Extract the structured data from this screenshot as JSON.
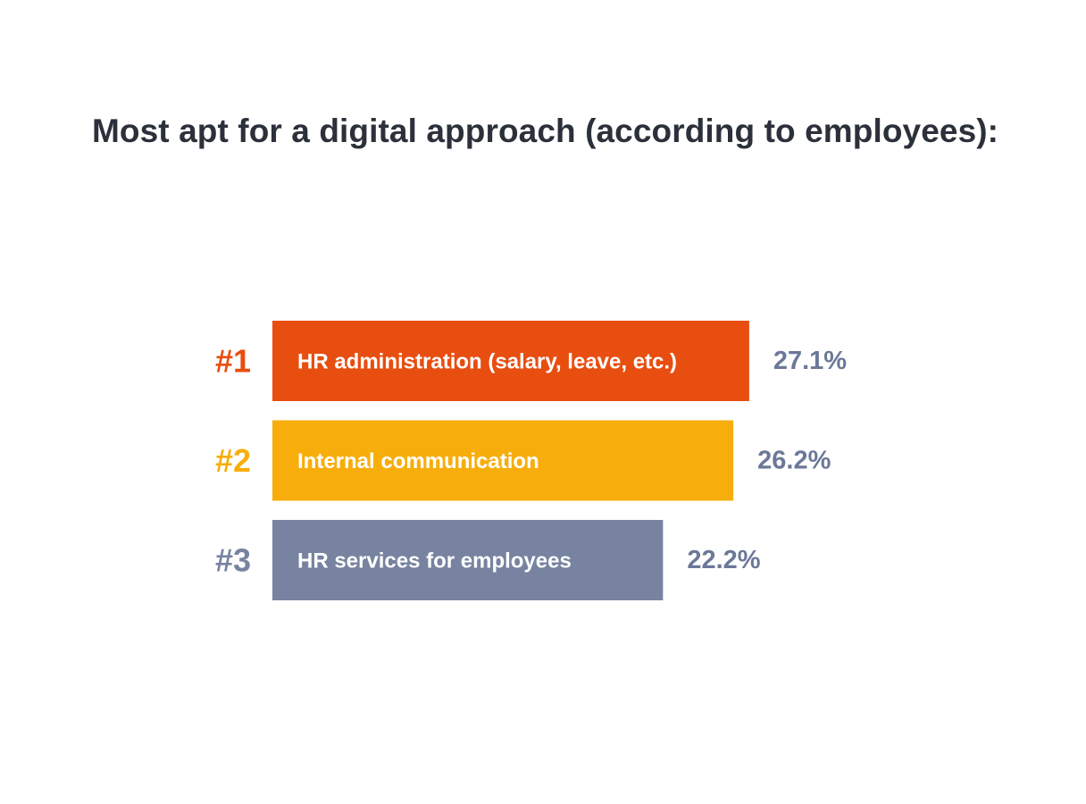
{
  "title": "Most apt for a digital approach (according to employees):",
  "colors": {
    "title": "#2b303a",
    "value_text": "#6c7898"
  },
  "chart_data": {
    "type": "bar",
    "orientation": "horizontal",
    "title": "Most apt for a digital approach (according to employees):",
    "categories": [
      "HR administration (salary, leave, etc.)",
      "Internal communication",
      "HR services for employees"
    ],
    "ranks": [
      "#1",
      "#2",
      "#3"
    ],
    "values": [
      27.1,
      26.2,
      22.2
    ],
    "value_labels": [
      "27.1%",
      "26.2%",
      "22.2%"
    ],
    "unit": "%",
    "colors": [
      "#e84e10",
      "#f7ae0c",
      "#7783a0"
    ],
    "rank_colors": [
      "#e84e10",
      "#f7ae0c",
      "#7783a0"
    ],
    "grid": false,
    "legend": "none"
  }
}
